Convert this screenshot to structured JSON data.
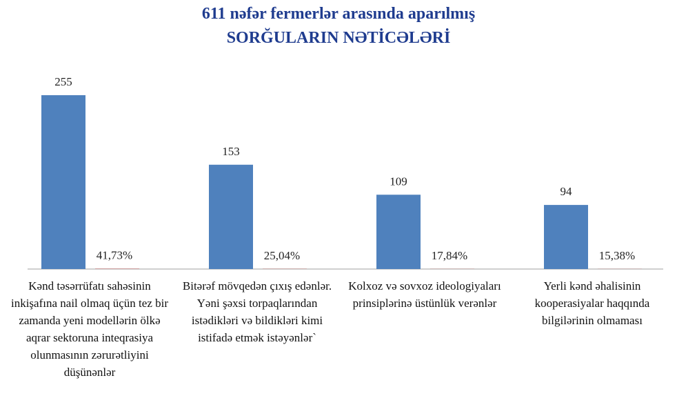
{
  "chart_data": {
    "type": "bar",
    "title": "611 nəfər fermerlər arasında aparılmış",
    "subtitle": "SORĞULARIN NƏTİCƏLƏRİ",
    "categories": [
      "Kənd təsərrüfatı sahəsinin inkişafına nail olmaq üçün tez bir zamanda yeni modellərin ölkə aqrar sektoruna inteqrasiya olunmasının zərurətliyini düşünənlər",
      "Bitərəf mövqedən çıxış edənlər. Yəni şəxsi torpaqlarından istədikləri və bildikləri kimi istifadə etmək istəyənlər`",
      "Kolxoz və sovxoz ideologiyaları prinsiplərinə üstünlük verənlər",
      "Yerli kənd əhalisinin kooperasiyalar haqqında bilgilərinin olmaması"
    ],
    "series": [
      {
        "color": "#4f81bd",
        "values": [
          255,
          153,
          109,
          94
        ]
      },
      {
        "color": "#c0504d",
        "values": [
          0.4173,
          0.2504,
          0.1784,
          0.1538
        ],
        "value_labels": [
          "41,73%",
          "25,04%",
          "17,84%",
          "15,38%"
        ]
      }
    ],
    "ylim": [
      0,
      258
    ]
  }
}
